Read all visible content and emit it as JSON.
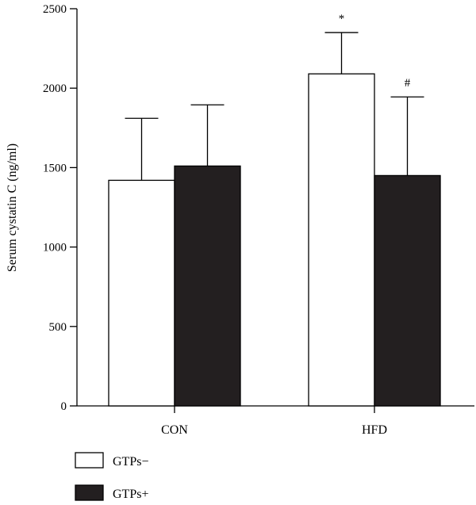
{
  "chart_data": {
    "type": "bar",
    "title": "",
    "xlabel": "",
    "ylabel": "Serum cystatin C (ng/ml)",
    "ylim": [
      0,
      2500
    ],
    "yticks": [
      0,
      500,
      1000,
      1500,
      2000,
      2500
    ],
    "grid": false,
    "legend_position": "bottom-left",
    "categories": [
      "CON",
      "HFD"
    ],
    "series": [
      {
        "name": "GTPs−",
        "fill": "#ffffff",
        "values": [
          1420,
          2090
        ],
        "error_upper": [
          1810,
          2350
        ],
        "annotations": [
          "",
          "*"
        ]
      },
      {
        "name": "GTPs+",
        "fill": "#231f20",
        "values": [
          1510,
          1450
        ],
        "error_upper": [
          1895,
          1945
        ],
        "annotations": [
          "",
          "#"
        ]
      }
    ]
  }
}
